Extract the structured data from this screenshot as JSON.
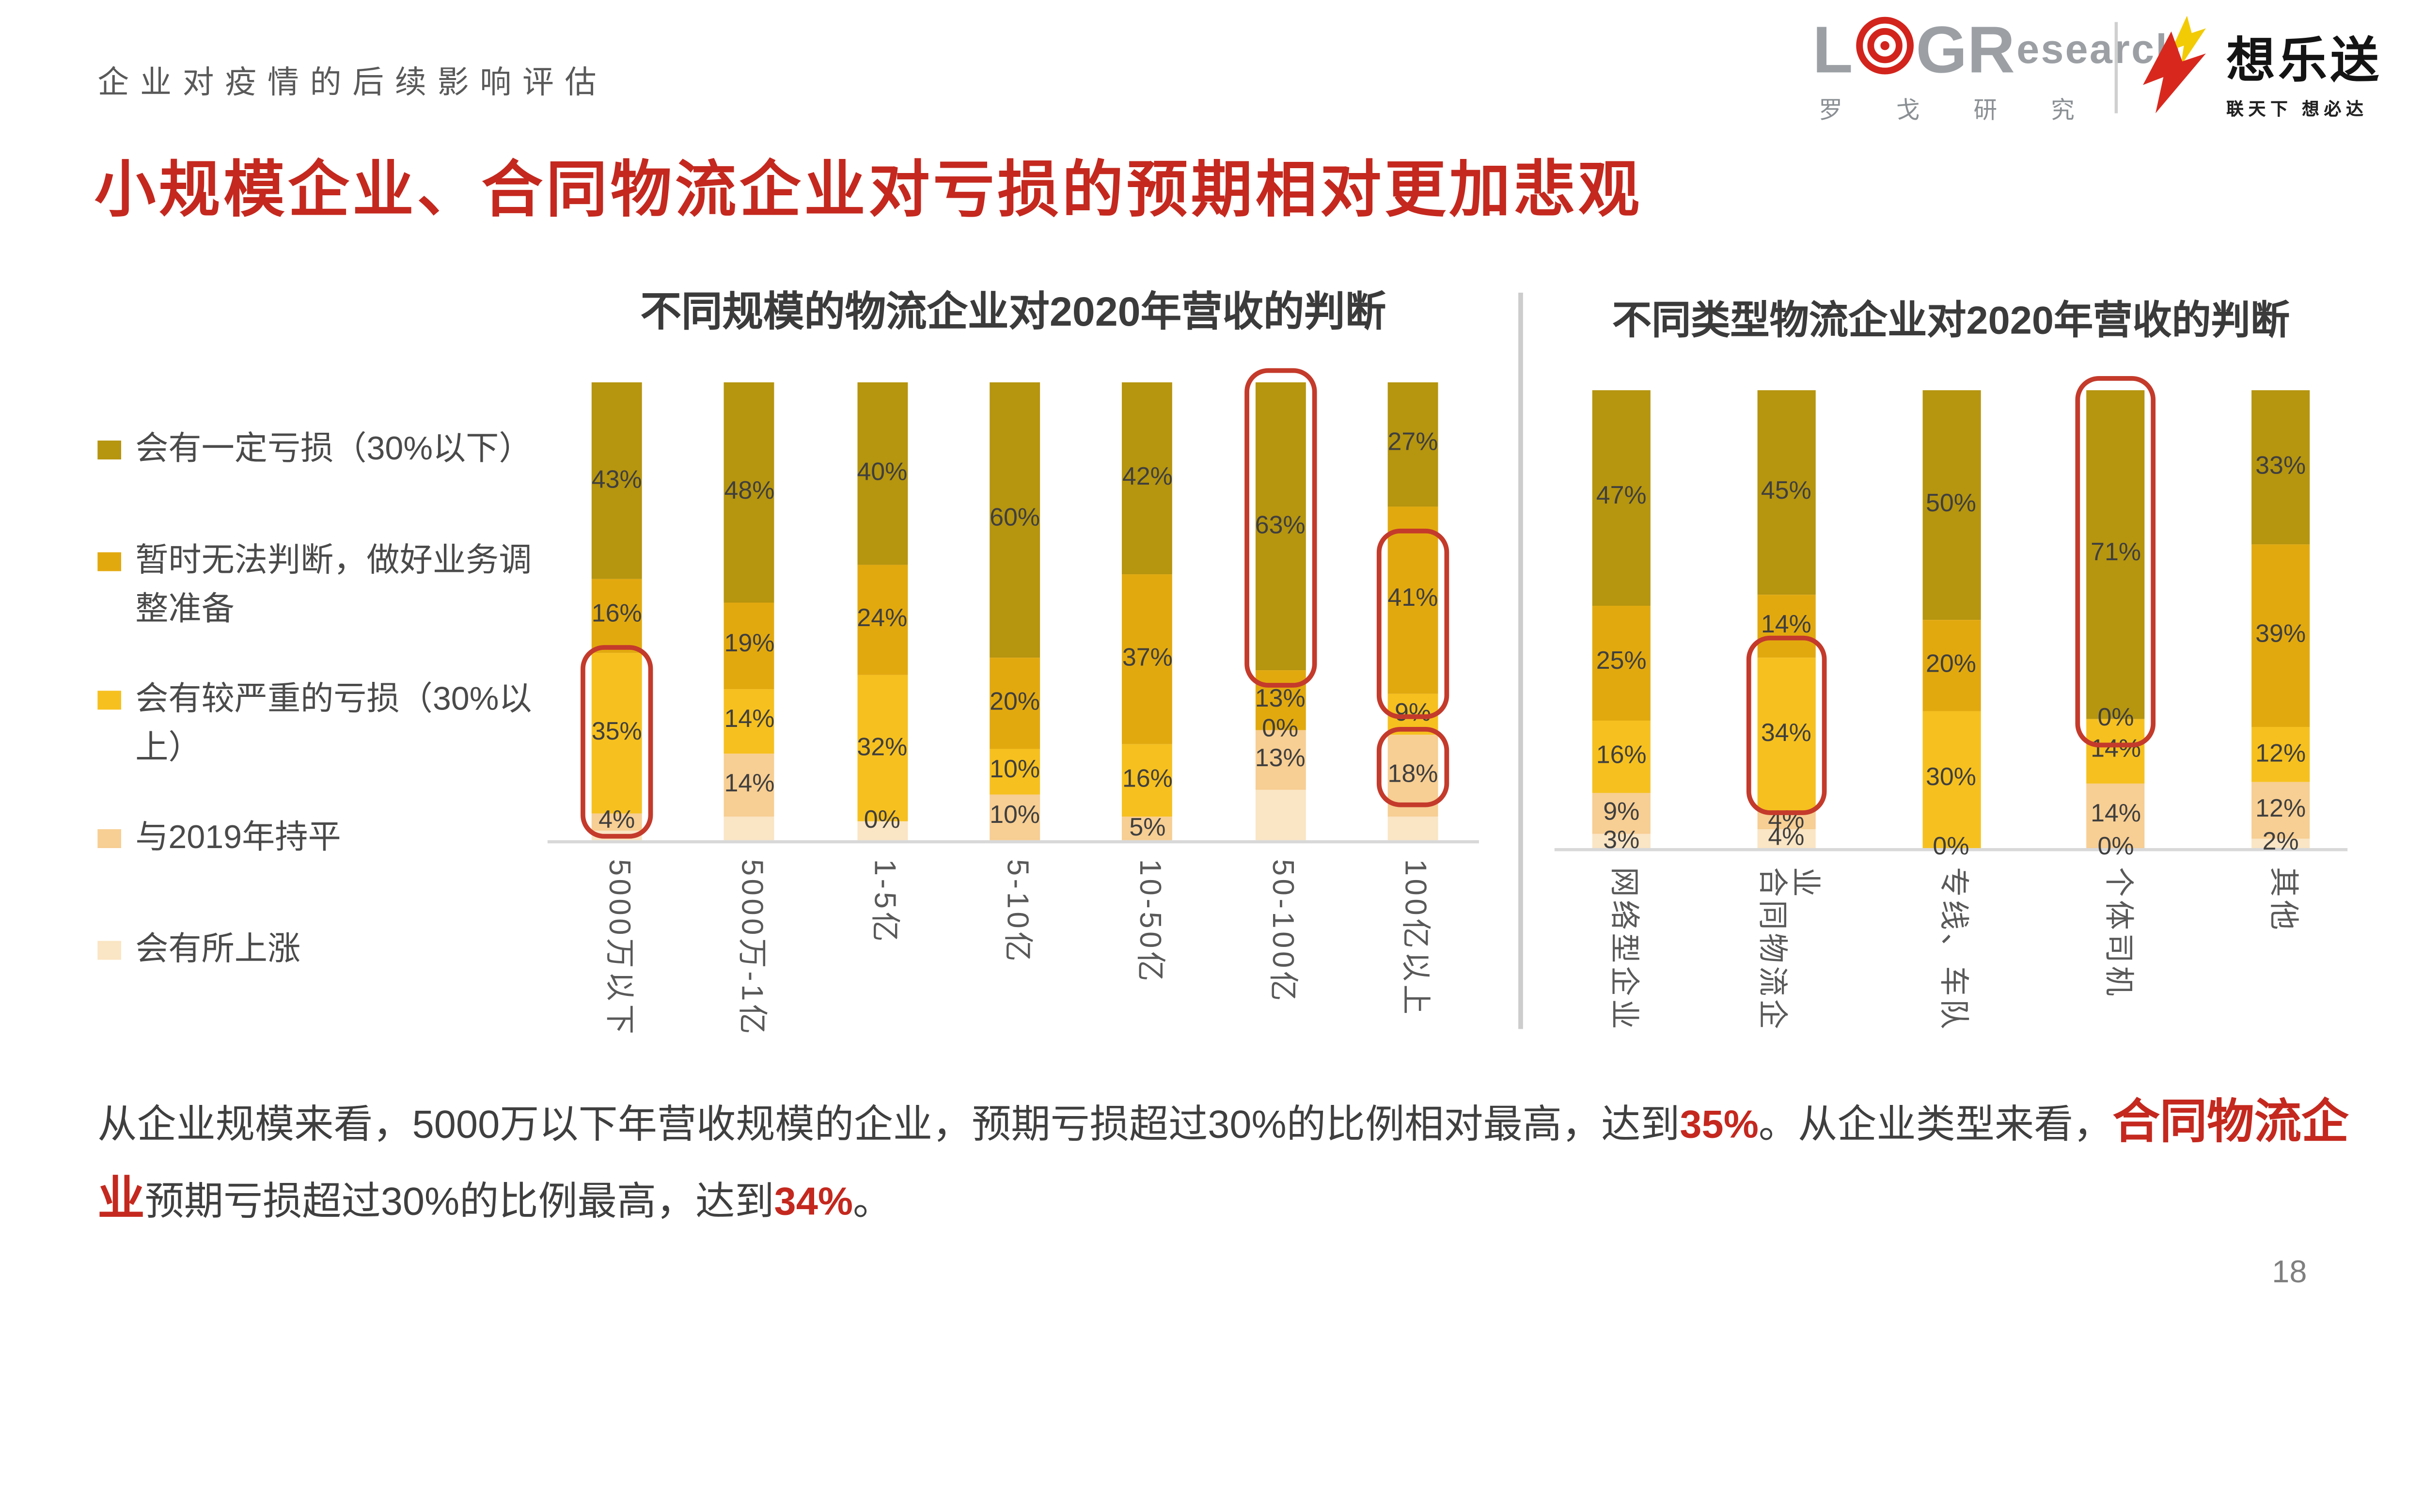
{
  "page": {
    "number": "18"
  },
  "header": {
    "eyebrow": "企业对疫情的后续影响评估",
    "title": "小规模企业、合同物流企业对亏损的预期相对更加悲观"
  },
  "logos": {
    "logr": {
      "letter_l": "L",
      "letter_g": "G",
      "letter_r": "R",
      "suffix": "esearch",
      "subtitle": "罗 戈 研 究",
      "target_color": "#D2241C",
      "letter_color": "#9CA0A5"
    },
    "xls": {
      "name": "想乐送",
      "slogan": "联天下  想必达",
      "arrow_red": "#D8281E",
      "arrow_yellow": "#F2CB05"
    }
  },
  "colors": {
    "accent_red": "#C4281E",
    "annotation_red": "#C43A2B",
    "value_label": "#3F3F3F",
    "axis_label": "#595959",
    "line_gray": "#D8D8D8"
  },
  "legend": {
    "items": [
      {
        "label": "会有一定亏损（30%以下）",
        "color": "#B6950F"
      },
      {
        "label": "暂时无法判断，做好业务调整准备",
        "color": "#E2A90F"
      },
      {
        "label": "会有较严重的亏损（30%以上）",
        "color": "#F6C01F"
      },
      {
        "label": "与2019年持平",
        "color": "#F7CE93"
      },
      {
        "label": "会有所上涨",
        "color": "#FAE5C4"
      }
    ]
  },
  "chart_data": [
    {
      "type": "bar",
      "stacked": true,
      "unit": "percent",
      "ylim": [
        0,
        100
      ],
      "title": "不同规模的物流企业对2020年营收的判断",
      "categories": [
        "5000万以下",
        "5000万-1亿",
        "1-5亿",
        "5-10亿",
        "10-50亿",
        "50-100亿",
        "100亿以上"
      ],
      "series": [
        {
          "name": "会有一定亏损（30%以下）",
          "color": "#B6950F",
          "values": [
            43,
            48,
            40,
            60,
            42,
            63,
            27
          ],
          "label_shown": [
            true,
            true,
            true,
            true,
            true,
            true,
            true
          ]
        },
        {
          "name": "暂时无法判断，做好业务调整准备",
          "color": "#E2A90F",
          "values": [
            16,
            19,
            24,
            20,
            37,
            13,
            41
          ],
          "label_shown": [
            true,
            true,
            true,
            true,
            true,
            true,
            true
          ]
        },
        {
          "name": "会有较严重的亏损（30%以上）",
          "color": "#F6C01F",
          "values": [
            35,
            14,
            32,
            10,
            16,
            0,
            9
          ],
          "label_shown": [
            true,
            true,
            true,
            true,
            true,
            true,
            true
          ]
        },
        {
          "name": "与2019年持平",
          "color": "#F7CE93",
          "values": [
            4,
            14,
            0,
            10,
            5,
            13,
            18
          ],
          "label_shown": [
            true,
            true,
            true,
            true,
            true,
            true,
            true
          ]
        },
        {
          "name": "会有所上涨",
          "color": "#FAE5C4",
          "values": [
            2,
            5,
            4,
            0,
            0,
            11,
            5
          ],
          "label_shown": [
            false,
            false,
            false,
            false,
            false,
            false,
            false
          ]
        }
      ],
      "highlights": [
        {
          "bar": 0,
          "from": 2,
          "to": 2,
          "pad_top": 5,
          "pad_bottom": 16
        },
        {
          "bar": 5,
          "from": 0,
          "to": 0,
          "pad_top": 9,
          "pad_bottom": 11
        },
        {
          "bar": 6,
          "from": 1,
          "to": 1,
          "pad_top": -14,
          "pad_bottom": 16
        },
        {
          "bar": 6,
          "from": 3,
          "to": 3,
          "pad_top": 5,
          "pad_bottom": -6
        }
      ]
    },
    {
      "type": "bar",
      "stacked": true,
      "unit": "percent",
      "ylim": [
        0,
        100
      ],
      "title": "不同类型物流企业对2020年营收的判断",
      "categories": [
        "网络型企业",
        "合同物流企业",
        "专线、车队",
        "个体司机",
        "其他"
      ],
      "series": [
        {
          "name": "会有一定亏损（30%以下）",
          "color": "#B6950F",
          "values": [
            47,
            45,
            50,
            71,
            33
          ],
          "label_shown": [
            true,
            true,
            true,
            true,
            true
          ]
        },
        {
          "name": "暂时无法判断，做好业务调整准备",
          "color": "#E2A90F",
          "values": [
            25,
            14,
            20,
            0,
            39
          ],
          "label_shown": [
            true,
            true,
            true,
            true,
            true
          ]
        },
        {
          "name": "会有较严重的亏损（30%以上）",
          "color": "#F6C01F",
          "values": [
            16,
            34,
            30,
            14,
            12
          ],
          "label_shown": [
            true,
            true,
            true,
            true,
            true
          ]
        },
        {
          "name": "与2019年持平",
          "color": "#F7CE93",
          "values": [
            9,
            4,
            0,
            14,
            12
          ],
          "label_shown": [
            true,
            true,
            true,
            true,
            true
          ]
        },
        {
          "name": "会有所上涨",
          "color": "#FAE5C4",
          "values": [
            3,
            4,
            0,
            0,
            2
          ],
          "label_shown": [
            true,
            true,
            false,
            true,
            true
          ]
        }
      ],
      "highlights": [
        {
          "bar": 1,
          "from": 2,
          "to": 2,
          "pad_top": 14,
          "pad_bottom": 2
        },
        {
          "bar": 3,
          "from": 0,
          "to": 1,
          "pad_top": 9,
          "pad_bottom": 18
        }
      ]
    }
  ],
  "footer": {
    "runs": [
      {
        "text": "从企业规模来看，5000万以下年营收规模的企业，预期亏损超过30%的比例相对最高，达到",
        "style": "normal"
      },
      {
        "text": "35%",
        "style": "red_bold"
      },
      {
        "text": "。从企业类型来看，",
        "style": "normal"
      },
      {
        "text": "合同物流企业",
        "style": "red_bold_large"
      },
      {
        "text": "预期亏损超过30%的比例最高，达到",
        "style": "normal"
      },
      {
        "text": "34%",
        "style": "red_bold"
      },
      {
        "text": "。",
        "style": "normal"
      }
    ]
  }
}
